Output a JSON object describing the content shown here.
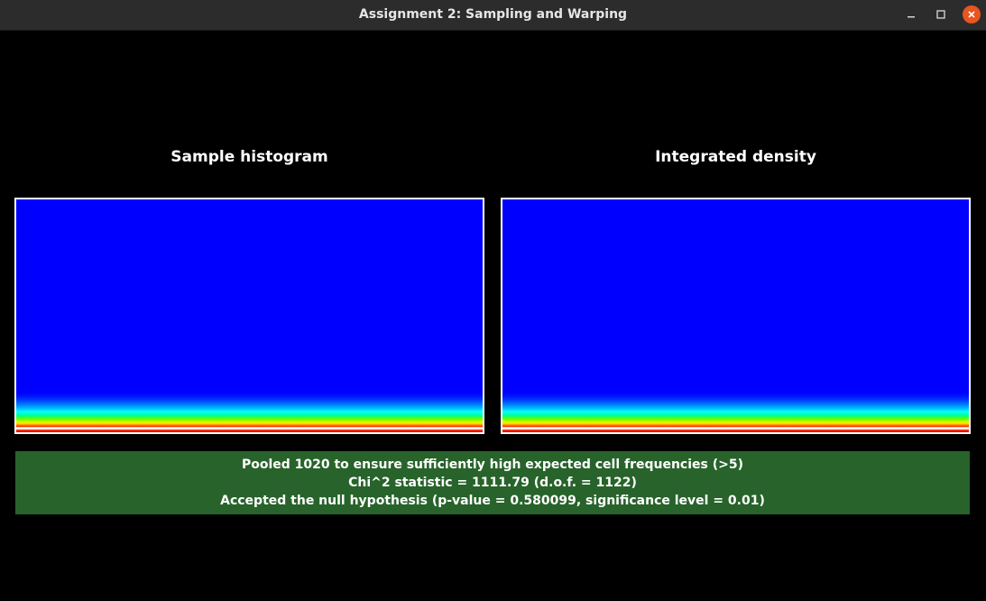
{
  "window": {
    "title": "Assignment 2: Sampling and Warping",
    "controls": {
      "minimize_icon": "minimize-icon",
      "maximize_icon": "maximize-icon",
      "close_icon": "close-icon",
      "close_color": "#e95420"
    }
  },
  "panels": [
    {
      "title": "Sample histogram",
      "colormap": "jet"
    },
    {
      "title": "Integrated density",
      "colormap": "jet"
    }
  ],
  "status": {
    "background": "#27632a",
    "lines": [
      "Pooled 1020 to ensure sufficiently high expected cell frequencies (>5)",
      "Chi^2 statistic = 1111.79 (d.o.f. = 1122)",
      "Accepted the null hypothesis (p-value = 0.580099, significance level = 0.01)"
    ]
  }
}
